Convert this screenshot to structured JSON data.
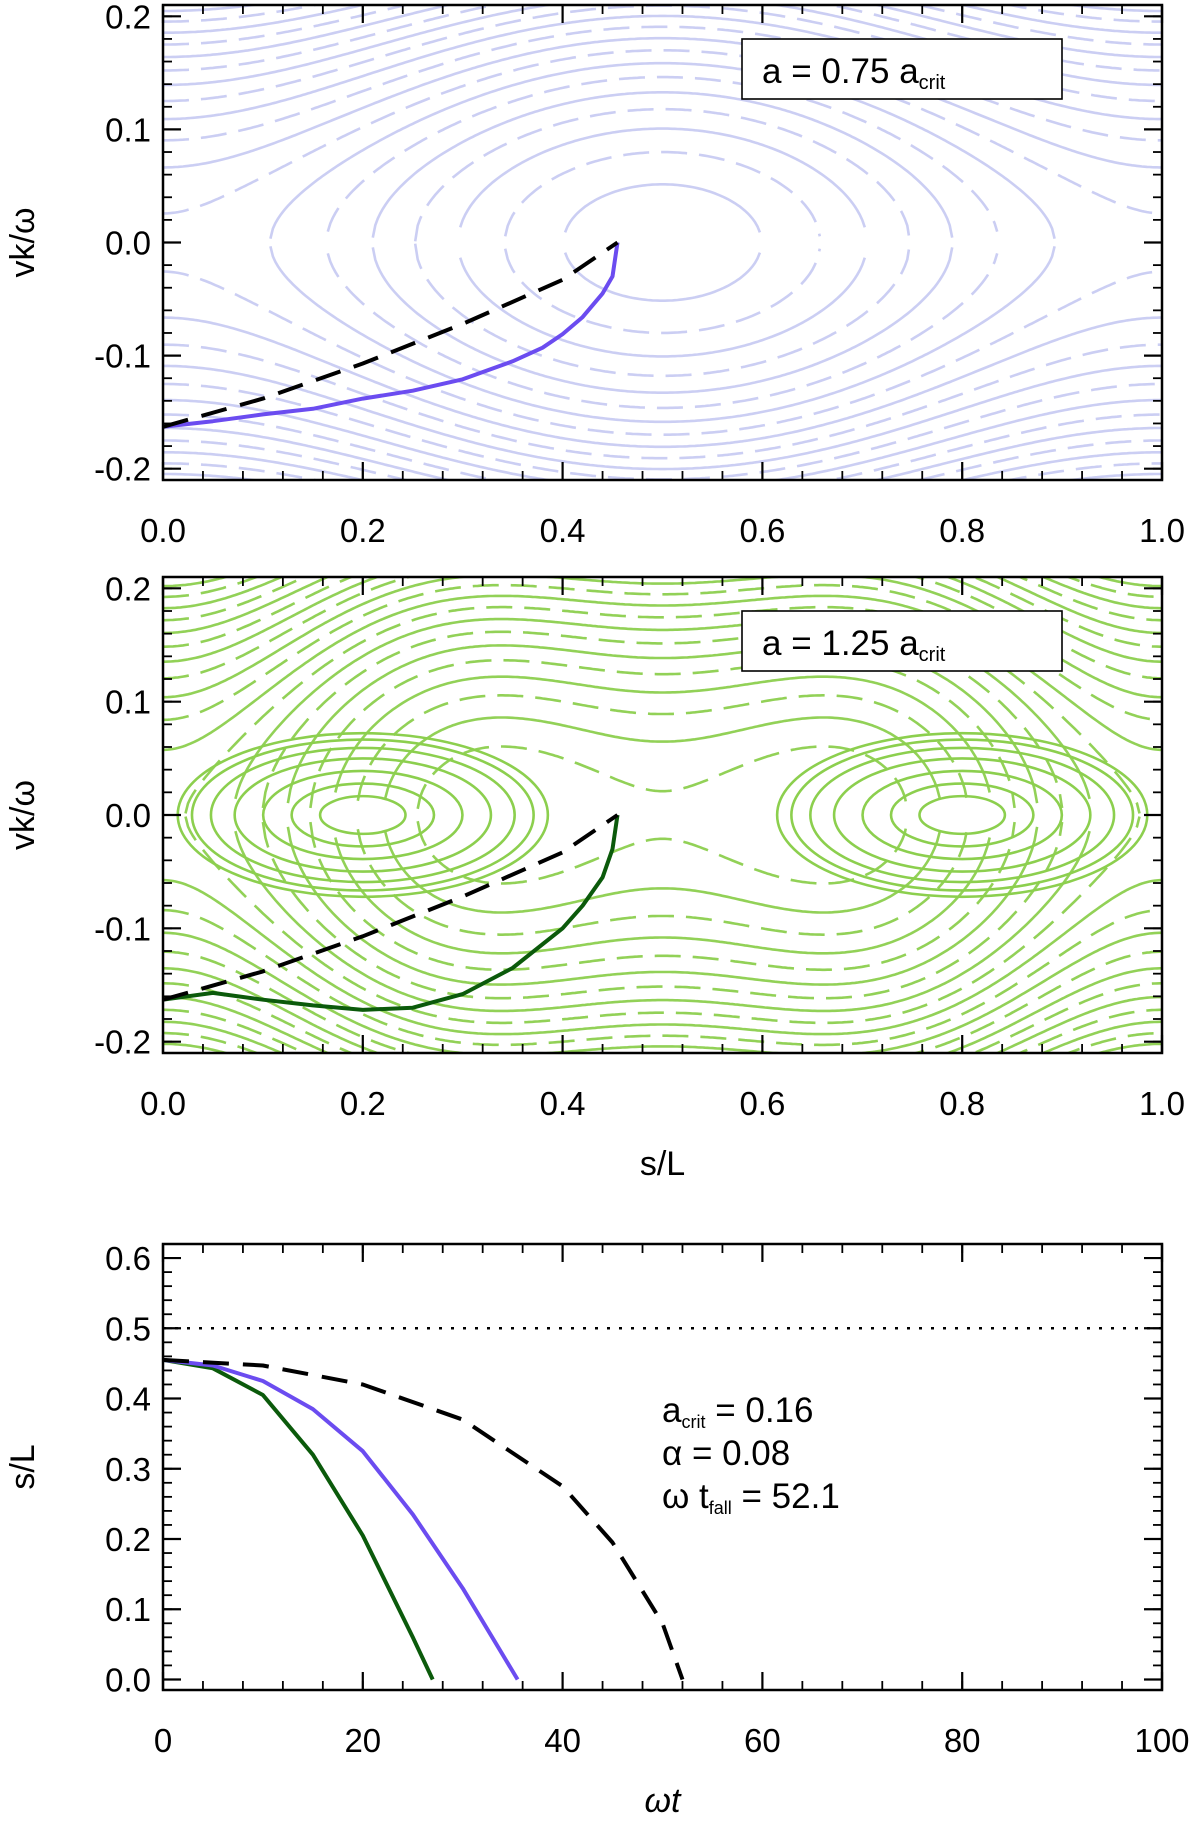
{
  "chart_data": [
    {
      "type": "line",
      "panel": "top",
      "xlim": [
        0.0,
        1.0
      ],
      "ylim": [
        -0.21,
        0.21
      ],
      "xticks": [
        "0.0",
        "0.2",
        "0.4",
        "0.6",
        "0.8",
        "1.0"
      ],
      "yticks": [
        "-0.2",
        "-0.1",
        "0.0",
        "0.1",
        "0.2"
      ],
      "ylabel": "vk/ω",
      "xlabel": "",
      "annotation": {
        "main": "a = 0.75 a",
        "sub": "crit"
      },
      "contour_color": "#c8cbf2",
      "series": [
        {
          "color": "#6b4cf0",
          "style": "solid",
          "x": [
            0.0,
            0.05,
            0.1,
            0.15,
            0.2,
            0.25,
            0.3,
            0.35,
            0.38,
            0.4,
            0.42,
            0.44,
            0.45,
            0.455
          ],
          "y": [
            -0.163,
            -0.158,
            -0.152,
            -0.147,
            -0.138,
            -0.131,
            -0.121,
            -0.105,
            -0.093,
            -0.081,
            -0.066,
            -0.045,
            -0.03,
            0.0
          ]
        },
        {
          "color": "#000000",
          "style": "dashed",
          "x": [
            0.0,
            0.1,
            0.2,
            0.3,
            0.4,
            0.455
          ],
          "y": [
            -0.163,
            -0.138,
            -0.107,
            -0.072,
            -0.033,
            0.0
          ]
        }
      ]
    },
    {
      "type": "line",
      "panel": "middle",
      "xlim": [
        0.0,
        1.0
      ],
      "ylim": [
        -0.21,
        0.21
      ],
      "xticks": [
        "0.0",
        "0.2",
        "0.4",
        "0.6",
        "0.8",
        "1.0"
      ],
      "yticks": [
        "-0.2",
        "-0.1",
        "0.0",
        "0.1",
        "0.2"
      ],
      "ylabel": "vk/ω",
      "xlabel": "s/L",
      "annotation": {
        "main": "a = 1.25 a",
        "sub": "crit"
      },
      "contour_color": "#8ccf4e",
      "series": [
        {
          "color": "#0b5a0b",
          "style": "solid",
          "x": [
            0.0,
            0.05,
            0.1,
            0.15,
            0.2,
            0.25,
            0.3,
            0.35,
            0.4,
            0.42,
            0.44,
            0.45,
            0.455
          ],
          "y": [
            -0.163,
            -0.157,
            -0.163,
            -0.168,
            -0.172,
            -0.17,
            -0.158,
            -0.135,
            -0.1,
            -0.08,
            -0.055,
            -0.03,
            0.0
          ]
        },
        {
          "color": "#000000",
          "style": "dashed",
          "x": [
            0.0,
            0.1,
            0.2,
            0.3,
            0.4,
            0.455
          ],
          "y": [
            -0.163,
            -0.138,
            -0.107,
            -0.072,
            -0.033,
            0.0
          ]
        }
      ]
    },
    {
      "type": "line",
      "panel": "bottom",
      "xlim": [
        0,
        100
      ],
      "ylim": [
        -0.015,
        0.62
      ],
      "xticks": [
        "0",
        "20",
        "40",
        "60",
        "80",
        "100"
      ],
      "yticks": [
        "0.0",
        "0.1",
        "0.2",
        "0.3",
        "0.4",
        "0.5",
        "0.6"
      ],
      "xlabel": "ωt",
      "ylabel": "s/L",
      "annotations": [
        {
          "main": "a",
          "sub": "crit",
          "rest": " = 0.16"
        },
        {
          "main": "α = 0.08",
          "sub": "",
          "rest": ""
        },
        {
          "main": "ω t",
          "sub": "fall",
          "rest": " = 52.1"
        }
      ],
      "hline": {
        "y": 0.5,
        "style": "dotted"
      },
      "series": [
        {
          "color": "#0b5a0b",
          "style": "solid",
          "x": [
            0,
            5,
            10,
            15,
            20,
            25,
            27
          ],
          "y": [
            0.455,
            0.443,
            0.405,
            0.32,
            0.205,
            0.06,
            0.0
          ]
        },
        {
          "color": "#6b4cf0",
          "style": "solid",
          "x": [
            0,
            5,
            10,
            15,
            20,
            25,
            30,
            35.5
          ],
          "y": [
            0.455,
            0.447,
            0.425,
            0.385,
            0.325,
            0.235,
            0.13,
            0.0
          ]
        },
        {
          "color": "#000000",
          "style": "dashed",
          "x": [
            0,
            10,
            20,
            30,
            40,
            45,
            50,
            52
          ],
          "y": [
            0.455,
            0.447,
            0.42,
            0.37,
            0.275,
            0.195,
            0.08,
            0.0
          ]
        }
      ]
    }
  ]
}
